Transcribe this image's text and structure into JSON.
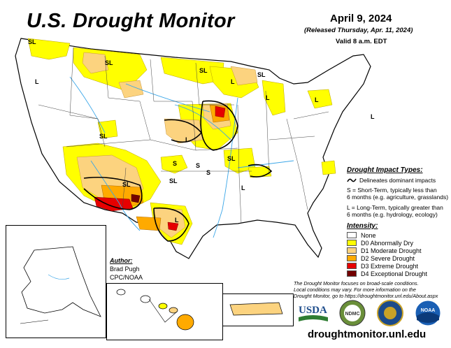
{
  "header": {
    "title": "U.S. Drought Monitor",
    "date": "April 9, 2024",
    "released": "(Released Thursday, Apr. 11, 2024)",
    "valid": "Valid 8 a.m. EDT"
  },
  "map_labels": {
    "sl": "SL",
    "l": "L",
    "s": "S"
  },
  "impact_types": {
    "title": "Drought Impact Types:",
    "delineates": "Delineates dominant impacts",
    "s_line1": "S = Short-Term, typically less than",
    "s_line2": "6 months (e.g. agriculture, grasslands)",
    "l_line1": "L = Long-Term, typically greater than",
    "l_line2": "6 months (e.g. hydrology, ecology)"
  },
  "intensity": {
    "title": "Intensity:",
    "items": [
      {
        "label": "None",
        "color": "#ffffff"
      },
      {
        "label": "D0 Abnormally Dry",
        "color": "#ffff00"
      },
      {
        "label": "D1 Moderate Drought",
        "color": "#fcd37f"
      },
      {
        "label": "D2 Severe Drought",
        "color": "#ffaa00"
      },
      {
        "label": "D3 Extreme Drought",
        "color": "#e60000"
      },
      {
        "label": "D4 Exceptional Drought",
        "color": "#730000"
      }
    ]
  },
  "author": {
    "label": "Author:",
    "name": "Brad Pugh",
    "org": "CPC/NOAA"
  },
  "disclaimer": {
    "line1": "The Drought Monitor focuses on broad-scale conditions.",
    "line2": "Local conditions may vary. For more information on the",
    "line3": "Drought Monitor, go to https://droughtmonitor.unl.edu/About.aspx"
  },
  "logos": {
    "usda": "USDA",
    "ndmc": "NDMC",
    "noaa": "NOAA"
  },
  "url": "droughtmonitor.unl.edu"
}
